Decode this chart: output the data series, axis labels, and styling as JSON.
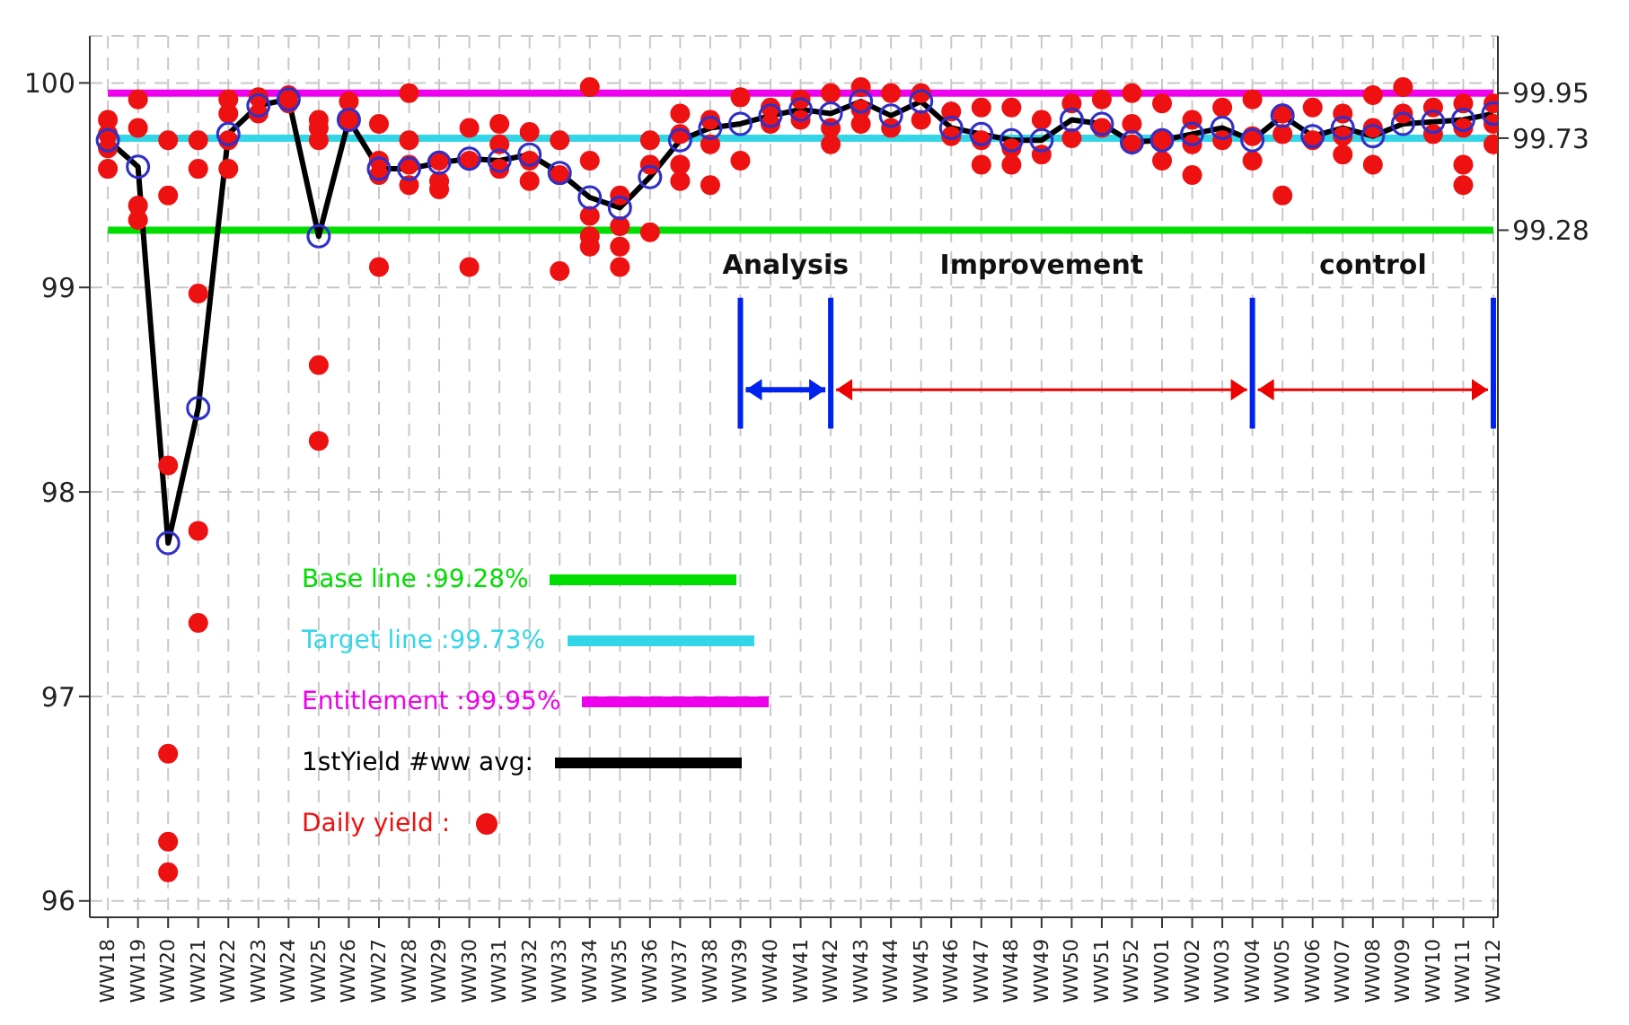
{
  "chart_data": {
    "type": "line",
    "categories": [
      "WW18",
      "WW19",
      "WW20",
      "WW21",
      "WW22",
      "WW23",
      "WW24",
      "WW25",
      "WW26",
      "WW27",
      "WW28",
      "WW29",
      "WW30",
      "WW31",
      "WW32",
      "WW33",
      "WW34",
      "WW35",
      "WW36",
      "WW37",
      "WW38",
      "WW39",
      "WW40",
      "WW41",
      "WW42",
      "WW43",
      "WW44",
      "WW45",
      "WW46",
      "WW47",
      "WW48",
      "WW49",
      "WW50",
      "WW51",
      "WW52",
      "WW01",
      "WW02",
      "WW03",
      "WW04",
      "WW05",
      "WW06",
      "WW07",
      "WW08",
      "WW09",
      "WW10",
      "WW11",
      "WW12"
    ],
    "ylim": [
      95.92,
      100.23
    ],
    "yticks": [
      96,
      97,
      98,
      99,
      100
    ],
    "y2lim": [
      95.92,
      100.23
    ],
    "y2ticks": [
      99.28,
      99.73,
      99.95
    ],
    "grid": true,
    "legend": "bottom left",
    "series": [
      {
        "name": "Base line :99.28%",
        "marker": "none",
        "color": "#00dd00",
        "values": [
          99.28,
          99.28,
          99.28,
          99.28,
          99.28,
          99.28,
          99.28,
          99.28,
          99.28,
          99.28,
          99.28,
          99.28,
          99.28,
          99.28,
          99.28,
          99.28,
          99.28,
          99.28,
          99.28,
          99.28,
          99.28,
          99.28,
          99.28,
          99.28,
          99.28,
          99.28,
          99.28,
          99.28,
          99.28,
          99.28,
          99.28,
          99.28,
          99.28,
          99.28,
          99.28,
          99.28,
          99.28,
          99.28,
          99.28,
          99.28,
          99.28,
          99.28,
          99.28,
          99.28,
          99.28,
          99.28,
          99.28
        ]
      },
      {
        "name": "Target line :99.73%",
        "marker": "none",
        "color": "#33d6e6",
        "values": [
          99.73,
          99.73,
          99.73,
          99.73,
          99.73,
          99.73,
          99.73,
          99.73,
          99.73,
          99.73,
          99.73,
          99.73,
          99.73,
          99.73,
          99.73,
          99.73,
          99.73,
          99.73,
          99.73,
          99.73,
          99.73,
          99.73,
          99.73,
          99.73,
          99.73,
          99.73,
          99.73,
          99.73,
          99.73,
          99.73,
          99.73,
          99.73,
          99.73,
          99.73,
          99.73,
          99.73,
          99.73,
          99.73,
          99.73,
          99.73,
          99.73,
          99.73,
          99.73,
          99.73,
          99.73,
          99.73,
          99.73
        ]
      },
      {
        "name": "Entitlement :99.95%",
        "marker": "none",
        "color": "#ee00ee",
        "values": [
          99.95,
          99.95,
          99.95,
          99.95,
          99.95,
          99.95,
          99.95,
          99.95,
          99.95,
          99.95,
          99.95,
          99.95,
          99.95,
          99.95,
          99.95,
          99.95,
          99.95,
          99.95,
          99.95,
          99.95,
          99.95,
          99.95,
          99.95,
          99.95,
          99.95,
          99.95,
          99.95,
          99.95,
          99.95,
          99.95,
          99.95,
          99.95,
          99.95,
          99.95,
          99.95,
          99.95,
          99.95,
          99.95,
          99.95,
          99.95,
          99.95,
          99.95,
          99.95,
          99.95,
          99.95,
          99.95,
          99.95
        ]
      },
      {
        "name": "1stYield #ww avg:",
        "marker": "circle",
        "color": "#000000",
        "values": [
          99.72,
          99.59,
          97.75,
          98.41,
          99.75,
          99.89,
          99.92,
          99.25,
          99.82,
          99.58,
          99.58,
          99.61,
          99.63,
          99.62,
          99.65,
          99.56,
          99.44,
          99.39,
          99.54,
          99.72,
          99.78,
          99.8,
          99.84,
          99.87,
          99.85,
          99.91,
          99.84,
          99.91,
          99.78,
          99.75,
          99.72,
          99.72,
          99.82,
          99.8,
          99.71,
          99.72,
          99.75,
          99.78,
          99.72,
          99.84,
          99.74,
          99.78,
          99.74,
          99.8,
          99.81,
          99.82,
          99.85
        ]
      },
      {
        "name": "Daily yield :",
        "type": "scatter",
        "marker": "circle",
        "color": "#ee1111",
        "x": [
          "WW18",
          "WW18",
          "WW18",
          "WW18",
          "WW19",
          "WW19",
          "WW19",
          "WW19",
          "WW20",
          "WW20",
          "WW20",
          "WW20",
          "WW20",
          "WW20",
          "WW21",
          "WW21",
          "WW21",
          "WW21",
          "WW21",
          "WW22",
          "WW22",
          "WW22",
          "WW22",
          "WW23",
          "WW23",
          "WW24",
          "WW24",
          "WW25",
          "WW25",
          "WW25",
          "WW25",
          "WW25",
          "WW26",
          "WW26",
          "WW27",
          "WW27",
          "WW27",
          "WW27",
          "WW28",
          "WW28",
          "WW28",
          "WW28",
          "WW29",
          "WW29",
          "WW29",
          "WW30",
          "WW30",
          "WW30",
          "WW31",
          "WW31",
          "WW31",
          "WW32",
          "WW32",
          "WW32",
          "WW33",
          "WW33",
          "WW33",
          "WW34",
          "WW34",
          "WW34",
          "WW34",
          "WW34",
          "WW35",
          "WW35",
          "WW35",
          "WW35",
          "WW36",
          "WW36",
          "WW36",
          "WW37",
          "WW37",
          "WW37",
          "WW37",
          "WW38",
          "WW38",
          "WW38",
          "WW39",
          "WW39",
          "WW40",
          "WW40",
          "WW41",
          "WW41",
          "WW42",
          "WW42",
          "WW42",
          "WW43",
          "WW43",
          "WW43",
          "WW44",
          "WW44",
          "WW45",
          "WW45",
          "WW46",
          "WW46",
          "WW47",
          "WW47",
          "WW47",
          "WW48",
          "WW48",
          "WW48",
          "WW49",
          "WW49",
          "WW50",
          "WW50",
          "WW51",
          "WW51",
          "WW52",
          "WW52",
          "WW52",
          "WW01",
          "WW01",
          "WW01",
          "WW02",
          "WW02",
          "WW02",
          "WW03",
          "WW03",
          "WW04",
          "WW04",
          "WW04",
          "WW05",
          "WW05",
          "WW05",
          "WW06",
          "WW06",
          "WW07",
          "WW07",
          "WW07",
          "WW08",
          "WW08",
          "WW08",
          "WW09",
          "WW09",
          "WW10",
          "WW10",
          "WW11",
          "WW11",
          "WW11",
          "WW11",
          "WW12",
          "WW12",
          "WW12"
        ],
        "values": [
          99.82,
          99.75,
          99.58,
          99.68,
          99.92,
          99.78,
          99.4,
          99.33,
          99.72,
          99.45,
          98.13,
          96.72,
          96.29,
          96.14,
          99.72,
          99.58,
          98.97,
          97.81,
          97.36,
          99.92,
          99.85,
          99.72,
          99.58,
          99.93,
          99.85,
          99.94,
          99.9,
          99.82,
          99.78,
          99.72,
          98.62,
          98.25,
          99.91,
          99.82,
          99.8,
          99.62,
          99.55,
          99.1,
          99.95,
          99.72,
          99.6,
          99.5,
          99.62,
          99.52,
          99.48,
          99.78,
          99.62,
          99.1,
          99.8,
          99.7,
          99.58,
          99.76,
          99.62,
          99.52,
          99.72,
          99.55,
          99.08,
          99.98,
          99.62,
          99.35,
          99.2,
          99.25,
          99.45,
          99.3,
          99.1,
          99.2,
          99.72,
          99.6,
          99.27,
          99.85,
          99.75,
          99.6,
          99.52,
          99.82,
          99.7,
          99.5,
          99.93,
          99.62,
          99.88,
          99.8,
          99.92,
          99.82,
          99.95,
          99.78,
          99.7,
          99.98,
          99.87,
          99.8,
          99.95,
          99.78,
          99.95,
          99.82,
          99.86,
          99.74,
          99.88,
          99.72,
          99.6,
          99.88,
          99.68,
          99.6,
          99.82,
          99.65,
          99.9,
          99.73,
          99.92,
          99.78,
          99.95,
          99.8,
          99.7,
          99.9,
          99.72,
          99.62,
          99.82,
          99.7,
          99.55,
          99.88,
          99.72,
          99.92,
          99.74,
          99.62,
          99.85,
          99.75,
          99.45,
          99.88,
          99.72,
          99.85,
          99.74,
          99.65,
          99.94,
          99.78,
          99.6,
          99.98,
          99.85,
          99.88,
          99.75,
          99.9,
          99.78,
          99.6,
          99.5,
          99.9,
          99.8,
          99.7
        ]
      }
    ],
    "ref_lines": [
      {
        "axis": "x",
        "value": "WW39",
        "color": "#0022ee"
      },
      {
        "axis": "x",
        "value": "WW42",
        "color": "#0022ee"
      },
      {
        "axis": "x",
        "value": "WW04",
        "color": "#0022ee"
      },
      {
        "axis": "x",
        "value": "WW12",
        "color": "#0022ee"
      }
    ],
    "annotations": [
      "Analysis",
      "Improvement",
      "control"
    ]
  }
}
